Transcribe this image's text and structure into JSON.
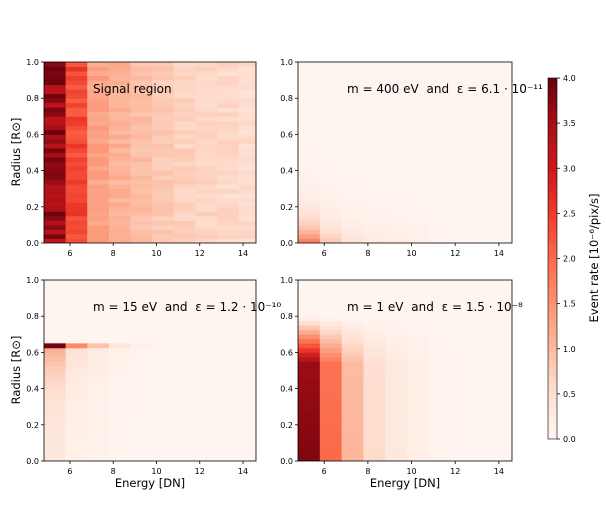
{
  "figure": {
    "colorbar": {
      "label": "Event rate [10⁻⁶/pix/s]",
      "vmin": 0.0,
      "vmax": 4.0,
      "ticks": [
        "0.0",
        "0.5",
        "1.0",
        "1.5",
        "2.0",
        "2.5",
        "3.0",
        "3.5",
        "4.0"
      ],
      "colormap": [
        "#fff5f0",
        "#fee0d2",
        "#fcbba1",
        "#fc9272",
        "#fb6a4a",
        "#ef3b2c",
        "#cb181d",
        "#a50f15",
        "#67000d"
      ]
    }
  },
  "chart_data": [
    {
      "type": "heatmap",
      "title": "Signal region",
      "xlabel": "",
      "ylabel": "Radius [R⊙]",
      "xlim": [
        4.8,
        14.6
      ],
      "ylim": [
        0.0,
        1.0
      ],
      "xticks": [
        "6",
        "8",
        "10",
        "12",
        "14"
      ],
      "yticks": [
        "0.0",
        "0.2",
        "0.4",
        "0.6",
        "0.8",
        "1.0"
      ],
      "energy_bin_edges": [
        4.8,
        5.8,
        6.8,
        7.8,
        8.8,
        9.8,
        10.8,
        11.8,
        12.8,
        13.8,
        14.6
      ],
      "radius_bin_width": 0.05,
      "column_mean_rate": [
        3.6,
        2.4,
        1.3,
        1.1,
        0.95,
        0.8,
        0.7,
        0.65,
        0.6,
        0.55
      ]
    },
    {
      "type": "heatmap",
      "title": "m = 400 eV and ε = 6.1 · 10⁻¹¹",
      "mass": "m = 400 eV",
      "coupling": "ε = 6.1 · 10⁻¹¹",
      "xlabel": "",
      "ylabel": "",
      "xlim": [
        4.8,
        14.6
      ],
      "ylim": [
        0.0,
        1.0
      ],
      "xticks": [
        "6",
        "8",
        "10",
        "12",
        "14"
      ],
      "yticks": [
        "0.0",
        "0.2",
        "0.4",
        "0.6",
        "0.8",
        "1.0"
      ],
      "energy_bin_edges": [
        4.8,
        5.8,
        6.8,
        7.8,
        8.8,
        9.8,
        10.8,
        11.8,
        12.8,
        13.8,
        14.6
      ],
      "column_peak_rate": [
        1.9,
        0.9,
        0.45,
        0.3,
        0.25,
        0.15,
        0.05,
        0.02,
        0.0,
        0.0
      ],
      "profile_scale_radius": 0.11
    },
    {
      "type": "heatmap",
      "title": "m = 15 eV and ε = 1.2 · 10⁻¹⁰",
      "mass": "m = 15 eV",
      "coupling": "ε = 1.2 · 10⁻¹⁰",
      "xlabel": "Energy [DN]",
      "ylabel": "Radius [R⊙]",
      "xlim": [
        4.8,
        14.6
      ],
      "ylim": [
        0.0,
        1.0
      ],
      "xticks": [
        "6",
        "8",
        "10",
        "12",
        "14"
      ],
      "yticks": [
        "0.0",
        "0.2",
        "0.4",
        "0.6",
        "0.8",
        "1.0"
      ],
      "energy_bin_edges": [
        4.8,
        5.8,
        6.8,
        7.8,
        8.8,
        9.8,
        10.8,
        11.8,
        12.8,
        13.8,
        14.6
      ],
      "edge_radius": 0.65,
      "column_edge_rate": [
        3.9,
        1.6,
        0.9,
        0.35,
        0.15,
        0.05,
        0.0,
        0.0,
        0.0,
        0.0
      ]
    },
    {
      "type": "heatmap",
      "title": "m = 1 eV and ε = 1.5 · 10⁻⁸",
      "mass": "m = 1 eV",
      "coupling": "ε = 1.5 · 10⁻⁸",
      "xlabel": "Energy [DN]",
      "ylabel": "",
      "xlim": [
        4.8,
        14.6
      ],
      "ylim": [
        0.0,
        1.0
      ],
      "xticks": [
        "6",
        "8",
        "10",
        "12",
        "14"
      ],
      "yticks": [
        "0.0",
        "0.2",
        "0.4",
        "0.6",
        "0.8",
        "1.0"
      ],
      "energy_bin_edges": [
        4.8,
        5.8,
        6.8,
        7.8,
        8.8,
        9.8,
        10.8,
        11.8,
        12.8,
        13.8,
        14.6
      ],
      "edge_radius": 0.8,
      "column_peak_rate": [
        3.8,
        2.0,
        1.05,
        0.55,
        0.3,
        0.15,
        0.05,
        0.02,
        0.0,
        0.0
      ]
    }
  ]
}
